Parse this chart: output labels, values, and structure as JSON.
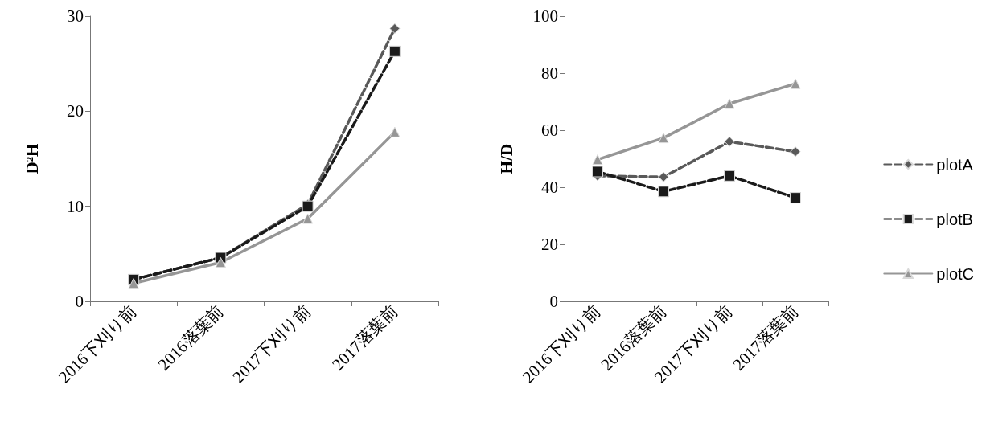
{
  "chart_data": [
    {
      "type": "line",
      "ylabel": "D²H",
      "categories": [
        "2016下刈り前",
        "2016落葉前",
        "2017下刈り前",
        "2017落葉前"
      ],
      "ylim": [
        0,
        30
      ],
      "yticks": [
        0,
        10,
        20,
        30
      ],
      "grid": false,
      "legend": false,
      "series": [
        {
          "color": "#595959",
          "marker": "diamond",
          "line_style": "dashed",
          "values": [
            2.3,
            4.6,
            10.2,
            28.7
          ]
        },
        {
          "color": "#1a1a1a",
          "marker": "square",
          "line_style": "dashed",
          "values": [
            2.3,
            4.6,
            10.0,
            26.3
          ]
        },
        {
          "color": "#969696",
          "marker": "triangle",
          "line_style": "solid",
          "values": [
            1.9,
            4.1,
            8.7,
            17.8
          ]
        }
      ]
    },
    {
      "type": "line",
      "ylabel": "H/D",
      "categories": [
        "2016下刈り前",
        "2016落葉前",
        "2017下刈り前",
        "2017落葉前"
      ],
      "ylim": [
        0,
        100
      ],
      "yticks": [
        0,
        20,
        40,
        60,
        80,
        100
      ],
      "grid": false,
      "legend": "right",
      "series": [
        {
          "name": "plotA",
          "color": "#595959",
          "marker": "diamond",
          "line_style": "dashed",
          "values": [
            44,
            43.6,
            56,
            52.5
          ]
        },
        {
          "name": "plotB",
          "color": "#1a1a1a",
          "marker": "square",
          "line_style": "dashed",
          "values": [
            45.5,
            38.5,
            44,
            36.3
          ]
        },
        {
          "name": "plotC",
          "color": "#969696",
          "marker": "triangle",
          "line_style": "solid",
          "values": [
            49.7,
            57.3,
            69.3,
            76.3
          ]
        }
      ]
    }
  ]
}
